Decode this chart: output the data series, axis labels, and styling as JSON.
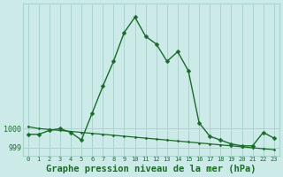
{
  "title": "Graphe pression niveau de la mer (hPa)",
  "background_color": "#cceae7",
  "grid_color": "#aad4d0",
  "line_color": "#1a6b2a",
  "x_labels": [
    "0",
    "1",
    "2",
    "3",
    "4",
    "5",
    "6",
    "7",
    "8",
    "9",
    "10",
    "11",
    "12",
    "13",
    "14",
    "15",
    "16",
    "17",
    "18",
    "19",
    "20",
    "21",
    "22",
    "23"
  ],
  "pressure_data": [
    999.7,
    999.7,
    999.9,
    1000.0,
    999.8,
    999.4,
    1000.8,
    1002.2,
    1003.5,
    1005.0,
    1005.8,
    1004.8,
    1004.4,
    1003.5,
    1004.0,
    1003.0,
    1000.3,
    999.6,
    999.4,
    999.2,
    999.1,
    999.1,
    999.8,
    999.5
  ],
  "trend_data": [
    1000.1,
    1000.0,
    999.95,
    999.9,
    999.85,
    999.8,
    999.75,
    999.7,
    999.65,
    999.6,
    999.55,
    999.5,
    999.45,
    999.4,
    999.35,
    999.3,
    999.25,
    999.2,
    999.15,
    999.1,
    999.05,
    999.0,
    998.95,
    998.9
  ],
  "ylim": [
    998.6,
    1006.5
  ],
  "yticks": [
    999,
    1000
  ],
  "title_fontsize": 7.5
}
